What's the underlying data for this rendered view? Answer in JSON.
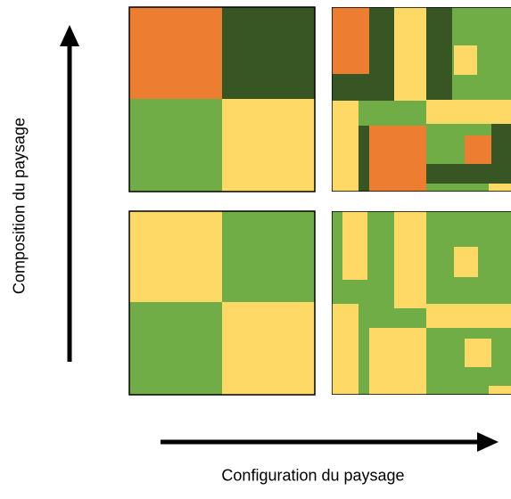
{
  "labels": {
    "composition": "Composition du paysage",
    "configuration": "Configuration du paysage"
  },
  "palette": {
    "orange": "#ED7D31",
    "dark_green": "#375623",
    "light_green": "#70AD47",
    "yellow": "#FFD966",
    "outline": "#000000"
  }
}
